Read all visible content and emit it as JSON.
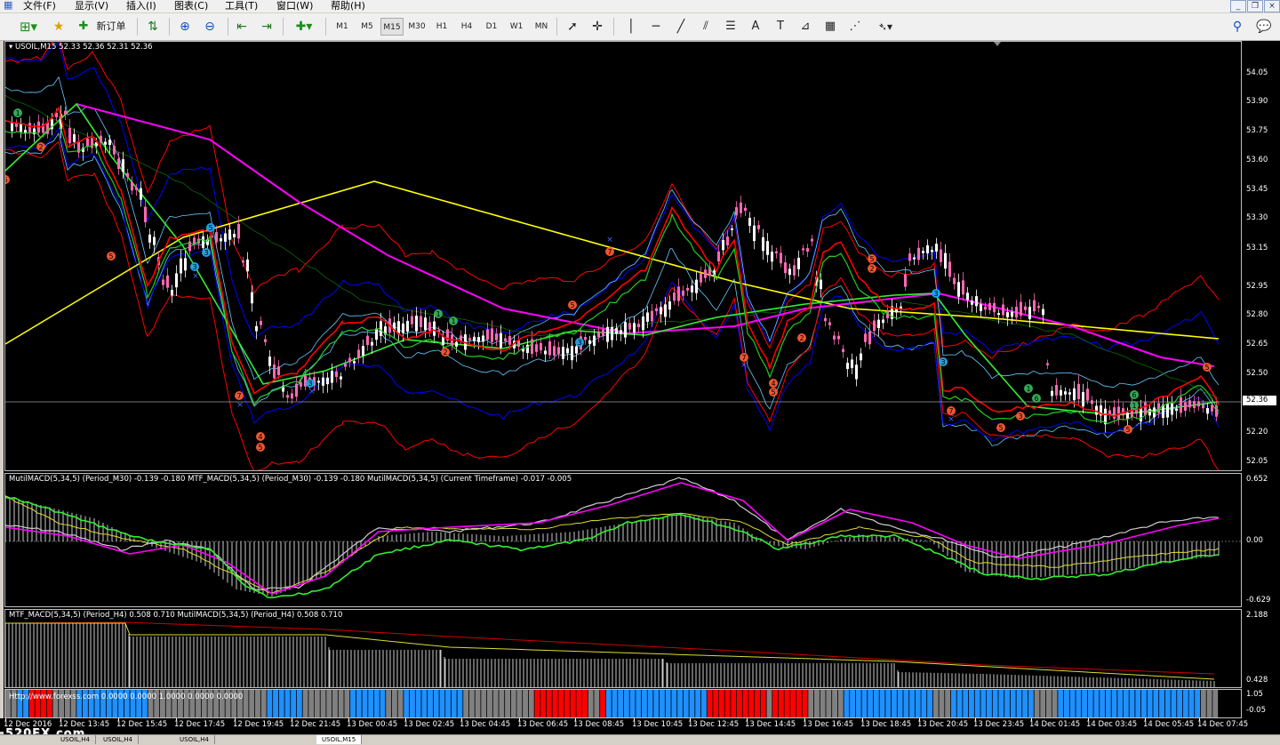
{
  "menu": [
    "文件(F)",
    "显示(V)",
    "插入(I)",
    "图表(C)",
    "工具(T)",
    "窗口(W)",
    "帮助(H)"
  ],
  "toolbar": {
    "new_order_label": "新订单",
    "timeframes": [
      "M1",
      "M5",
      "M15",
      "M30",
      "H1",
      "H4",
      "D1",
      "W1",
      "MN"
    ],
    "active_timeframe": "M15",
    "text_tool": "A"
  },
  "main_chart": {
    "header": "USOIL,M15  52.33 52.36 52.31 52.36",
    "price_ticks": [
      "54.05",
      "53.90",
      "53.75",
      "53.60",
      "53.45",
      "53.30",
      "53.15",
      "52.95",
      "52.80",
      "52.65",
      "52.50",
      "52.36",
      "52.20",
      "52.05"
    ],
    "current_price": "52.36"
  },
  "macd_pane": {
    "header": "MutilMACD(5,34,5) (Period_M30) -0.139 -0.180  MTF_MACD(5,34,5) (Period_M30) -0.139 -0.180  MutilMACD(5,34,5) (Current Timeframe) -0.017 -0.005",
    "ticks": [
      "0.652",
      "0.00",
      "-0.629"
    ]
  },
  "h4_pane": {
    "header": "MTF_MACD(5,34,5) (Period_H4) 0.508 0.710  MutilMACD(5,34,5) (Period_H4) 0.508 0.710",
    "ticks": [
      "2.188",
      "0.428"
    ]
  },
  "bar_pane": {
    "header": "Http://www.forexss.com 0.0000 0.0000 1.0000 0.0000 0.0000",
    "ticks": [
      "1.05",
      "-0.05"
    ]
  },
  "time_axis": [
    "12 Dec 2016",
    "12 Dec 13:45",
    "12 Dec 15:45",
    "12 Dec 17:45",
    "12 Dec 19:45",
    "12 Dec 21:45",
    "13 Dec 00:45",
    "13 Dec 02:45",
    "13 Dec 04:45",
    "13 Dec 06:45",
    "13 Dec 08:45",
    "13 Dec 10:45",
    "13 Dec 12:45",
    "13 Dec 14:45",
    "13 Dec 16:45",
    "13 Dec 18:45",
    "13 Dec 20:45",
    "13 Dec 23:45",
    "14 Dec 01:45",
    "14 Dec 03:45",
    "14 Dec 05:45",
    "14 Dec 07:45"
  ],
  "watermark": "520FX.com",
  "tabs": [
    "USOIL,H4",
    "USOIL,H4",
    "USOIL,H4",
    "USOIL,M15"
  ],
  "active_tab_index": 3,
  "colors": {
    "bull": "#ffffff",
    "bear": "#ff69b4",
    "ma_red": "#ff0000",
    "ma_green": "#00c000",
    "ma_magenta": "#ff00ff",
    "ma_yellow": "#ffff00",
    "band_blue": "#0000ff",
    "band_red": "#ff0000",
    "sky": "#66ccff",
    "bar_blue": "#1e90ff",
    "bar_red": "#ff0000",
    "bar_gray": "#808080"
  }
}
